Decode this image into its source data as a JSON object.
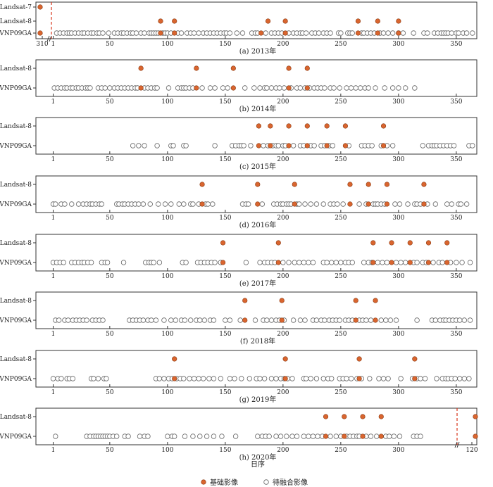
{
  "colors": {
    "base": "#d9652f",
    "base_edge": "#8a3a12",
    "candidate_fill": "#ffffff",
    "candidate_edge": "#666666",
    "break_line": "#d9361a",
    "frame": "#333333"
  },
  "chart_data": {
    "type": "scatter",
    "xlabel": "日序",
    "legend": {
      "placement": "bottom-center",
      "base_label": "基础影像",
      "candidate_label": "待融合影像"
    },
    "xticks": [
      1,
      50,
      100,
      150,
      200,
      250,
      300,
      350
    ],
    "panels": [
      {
        "caption": "(a) 2013年",
        "rows": [
          "Landsat-7",
          "Landsat-8",
          "VNP09GA"
        ],
        "xticks": [
          "310",
          "1",
          "50",
          "100",
          "150",
          "200",
          "250",
          "300",
          "350"
        ],
        "prev_year_points": {
          "Landsat-7": [
            310
          ],
          "VNP09GA": [
            310
          ]
        },
        "base": {
          "Landsat-8": [
            94,
            106,
            187,
            202,
            265,
            282,
            300
          ],
          "VNP09GA": [
            94,
            106,
            181,
            202,
            265,
            282,
            300
          ]
        },
        "candidate": {
          "VNP09GA": [
            4,
            7,
            10,
            13,
            15,
            17,
            20,
            23,
            26,
            28,
            31,
            34,
            36,
            39,
            41,
            44,
            49,
            54,
            57,
            60,
            62,
            65,
            68,
            70,
            73,
            77,
            80,
            84,
            86,
            88,
            90,
            92,
            96,
            98,
            100,
            103,
            109,
            112,
            117,
            120,
            123,
            127,
            131,
            134,
            137,
            140,
            143,
            146,
            149,
            151,
            154,
            160,
            165,
            173,
            176,
            178,
            185,
            190,
            193,
            196,
            199,
            205,
            209,
            212,
            215,
            217,
            220,
            225,
            228,
            231,
            235,
            238,
            241,
            248,
            250,
            256,
            258,
            260,
            268,
            270,
            273,
            276,
            279,
            284,
            287,
            291,
            295,
            300,
            304,
            313,
            322,
            325,
            331,
            334,
            337,
            339,
            341,
            343,
            346,
            350,
            352,
            356,
            359,
            364
          ]
        }
      },
      {
        "caption": "(b) 2014年",
        "rows": [
          "Landsat-8",
          "VNP09GA"
        ],
        "base": {
          "Landsat-8": [
            77,
            125,
            157,
            205,
            221
          ],
          "VNP09GA": [
            77,
            125,
            157,
            205,
            221
          ]
        },
        "candidate": {
          "VNP09GA": [
            2,
            5,
            8,
            11,
            13,
            16,
            18,
            21,
            23,
            26,
            29,
            31,
            33,
            40,
            43,
            46,
            50,
            54,
            57,
            60,
            63,
            66,
            69,
            72,
            74,
            80,
            83,
            86,
            89,
            91,
            101,
            109,
            112,
            114,
            116,
            119,
            122,
            130,
            137,
            141,
            148,
            152,
            167,
            175,
            180,
            184,
            186,
            190,
            194,
            197,
            201,
            207,
            212,
            215,
            219,
            223,
            227,
            230,
            233,
            236,
            241,
            244,
            249,
            255,
            259,
            263,
            267,
            271,
            274,
            280,
            288,
            295,
            300,
            306,
            314
          ]
        }
      },
      {
        "caption": "(c) 2015年",
        "rows": [
          "Landsat-8",
          "VNP09GA"
        ],
        "base": {
          "Landsat-8": [
            179,
            189,
            205,
            221,
            238,
            254,
            287
          ],
          "VNP09GA": [
            179,
            189,
            205,
            221,
            238,
            254,
            287
          ]
        },
        "candidate": {
          "VNP09GA": [
            70,
            75,
            80,
            91,
            103,
            105,
            114,
            116,
            141,
            156,
            159,
            162,
            164,
            166,
            172,
            183,
            187,
            191,
            194,
            196,
            200,
            202,
            209,
            215,
            218,
            224,
            227,
            233,
            236,
            240,
            243,
            257,
            268,
            271,
            274,
            277,
            285,
            290,
            295,
            321,
            326,
            329,
            331,
            333,
            336,
            339,
            342,
            345,
            348,
            361,
            364
          ]
        }
      },
      {
        "caption": "(d) 2016年",
        "rows": [
          "Landsat-8",
          "VNP09GA"
        ],
        "base": {
          "Landsat-8": [
            130,
            178,
            210,
            258,
            274,
            290,
            322
          ],
          "VNP09GA": [
            130,
            178,
            210,
            258,
            274,
            290,
            322
          ]
        },
        "candidate": {
          "VNP09GA": [
            1,
            3,
            8,
            11,
            17,
            23,
            27,
            30,
            33,
            35,
            38,
            41,
            43,
            56,
            58,
            61,
            63,
            66,
            69,
            72,
            75,
            79,
            85,
            92,
            98,
            103,
            110,
            114,
            120,
            122,
            127,
            133,
            135,
            139,
            165,
            168,
            170,
            182,
            192,
            195,
            198,
            200,
            203,
            205,
            207,
            212,
            214,
            219,
            224,
            229,
            235,
            241,
            244,
            247,
            252,
            266,
            272,
            278,
            280,
            282,
            285,
            288,
            297,
            301,
            308,
            314,
            316,
            319,
            325,
            332,
            342,
            346,
            352,
            354,
            359
          ]
        }
      },
      {
        "caption": "(e) 2017年",
        "rows": [
          "Landsat-8",
          "VNP09GA"
        ],
        "base": {
          "Landsat-8": [
            148,
            196,
            278,
            294,
            310,
            326,
            342
          ],
          "VNP09GA": [
            148,
            196,
            278,
            294,
            310,
            326,
            342
          ]
        },
        "candidate": {
          "VNP09GA": [
            1,
            4,
            7,
            10,
            17,
            20,
            23,
            26,
            28,
            31,
            34,
            43,
            46,
            48,
            62,
            81,
            84,
            86,
            88,
            93,
            113,
            116,
            126,
            129,
            132,
            135,
            138,
            141,
            146,
            168,
            180,
            184,
            187,
            190,
            193,
            200,
            205,
            210,
            214,
            218,
            222,
            226,
            235,
            238,
            242,
            246,
            250,
            254,
            257,
            260,
            270,
            274,
            277,
            282,
            286,
            290,
            298,
            302,
            306,
            313,
            316,
            321,
            324,
            330,
            335,
            338,
            345,
            350,
            355,
            362
          ]
        }
      },
      {
        "caption": "(f) 2018年",
        "rows": [
          "Landsat-8",
          "VNP09GA"
        ],
        "base": {
          "Landsat-8": [
            167,
            199,
            263,
            280
          ],
          "VNP09GA": [
            167,
            199,
            263,
            280
          ]
        },
        "candidate": {
          "VNP09GA": [
            3,
            6,
            11,
            14,
            18,
            21,
            24,
            27,
            30,
            35,
            38,
            41,
            44,
            67,
            70,
            73,
            76,
            79,
            83,
            86,
            90,
            97,
            103,
            107,
            112,
            115,
            120,
            125,
            128,
            132,
            137,
            140,
            150,
            154,
            163,
            176,
            183,
            186,
            190,
            194,
            197,
            201,
            209,
            215,
            219,
            226,
            229,
            233,
            236,
            240,
            243,
            246,
            249,
            254,
            257,
            260,
            266,
            269,
            272,
            276,
            285,
            289,
            293,
            298,
            316,
            329,
            332,
            336,
            339,
            341,
            344,
            347,
            350,
            353,
            357,
            362
          ]
        }
      },
      {
        "caption": "(g) 2019年",
        "rows": [
          "Landsat-8",
          "VNP09GA"
        ],
        "base": {
          "Landsat-8": [
            106,
            202,
            266,
            314
          ],
          "VNP09GA": [
            106,
            202,
            266,
            314
          ]
        },
        "candidate": {
          "VNP09GA": [
            1,
            5,
            8,
            13,
            15,
            18,
            34,
            36,
            40,
            45,
            47,
            90,
            93,
            97,
            101,
            104,
            108,
            111,
            114,
            119,
            123,
            127,
            131,
            136,
            140,
            146,
            154,
            158,
            164,
            171,
            177,
            180,
            184,
            190,
            194,
            198,
            201,
            204,
            208,
            218,
            220,
            224,
            229,
            235,
            239,
            242,
            249,
            252,
            255,
            259,
            264,
            268,
            275,
            283,
            287,
            291,
            302,
            312,
            316,
            319,
            323,
            333,
            338,
            341,
            343,
            346,
            349,
            353,
            357,
            361
          ]
        }
      },
      {
        "caption": "(h) 2020年",
        "rows": [
          "Landsat-8",
          "VNP09GA"
        ],
        "xticks": [
          "1",
          "50",
          "100",
          "150",
          "200",
          "250",
          "300",
          "120"
        ],
        "next_year_points": {
          "Landsat-8": [
            120
          ],
          "VNP09GA": [
            120
          ]
        },
        "base": {
          "Landsat-8": [
            237,
            253,
            269,
            285
          ],
          "VNP09GA": [
            237,
            253,
            269,
            285
          ]
        },
        "candidate": {
          "VNP09GA": [
            3,
            30,
            33,
            36,
            38,
            40,
            42,
            44,
            46,
            48,
            50,
            53,
            56,
            63,
            66,
            76,
            80,
            83,
            100,
            104,
            106,
            115,
            122,
            128,
            134,
            140,
            147,
            159,
            178,
            182,
            185,
            188,
            194,
            198,
            203,
            208,
            212,
            218,
            222,
            226,
            230,
            234,
            241,
            246,
            250,
            255,
            258,
            261,
            264,
            266,
            272,
            276,
            281,
            289,
            292,
            296,
            301,
            313,
            316,
            319
          ]
        }
      }
    ]
  }
}
